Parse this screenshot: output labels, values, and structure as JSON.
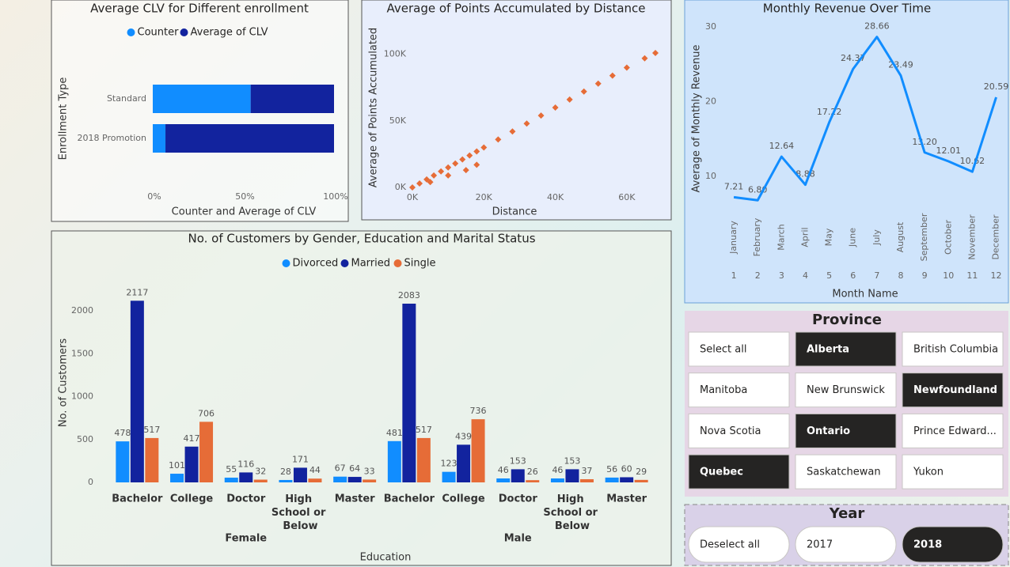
{
  "chart_data": [
    {
      "type": "bar",
      "orientation": "horizontal",
      "stacked": true,
      "title": "Average CLV for Different enrollment",
      "x_label": "Counter and Average of CLV",
      "y_label": "Enrollment Type",
      "categories": [
        "Standard",
        "2018 Promotion"
      ],
      "series": [
        {
          "name": "Counter",
          "color": "#118dff",
          "values": [
            54,
            7
          ]
        },
        {
          "name": "Average of CLV",
          "color": "#12239e",
          "values": [
            46,
            93
          ]
        }
      ],
      "xlim": [
        0,
        100
      ],
      "xticks": [
        {
          "value": 0,
          "label": "0%"
        },
        {
          "value": 50,
          "label": "50%"
        },
        {
          "value": 100,
          "label": "100%"
        }
      ]
    },
    {
      "type": "scatter",
      "title": "Average of Points Accumulated by Distance",
      "x_label": "Distance",
      "y_label": "Average of Points Accumulated",
      "color": "#e66c37",
      "x": [
        0,
        2000,
        4000,
        6000,
        8000,
        10000,
        12000,
        14000,
        16000,
        18000,
        20000,
        24000,
        28000,
        32000,
        36000,
        40000,
        44000,
        48000,
        52000,
        56000,
        60000,
        65000,
        68000,
        5000,
        10000,
        15000,
        18000
      ],
      "values": [
        0,
        3000,
        6000,
        9000,
        12000,
        15000,
        18000,
        21000,
        24000,
        27000,
        30000,
        36000,
        42000,
        48000,
        54000,
        60000,
        66000,
        72000,
        78000,
        84000,
        90000,
        97000,
        101000,
        4000,
        9000,
        13000,
        17000
      ],
      "xlim": [
        0,
        68000
      ],
      "xticks": [
        {
          "value": 0,
          "label": "0K"
        },
        {
          "value": 20000,
          "label": "20K"
        },
        {
          "value": 40000,
          "label": "40K"
        },
        {
          "value": 60000,
          "label": "60K"
        }
      ],
      "ylim": [
        0,
        120000
      ],
      "yticks": [
        {
          "value": 0,
          "label": "0K"
        },
        {
          "value": 50000,
          "label": "50K"
        },
        {
          "value": 100000,
          "label": "100K"
        }
      ]
    },
    {
      "type": "line",
      "title": "Monthly Revenue Over Time",
      "x_label": "Month Name",
      "y_label": "Average of Monthly Revenue",
      "color": "#118dff",
      "categories": [
        "January",
        "February",
        "March",
        "April",
        "May",
        "June",
        "July",
        "August",
        "September",
        "October",
        "November",
        "December"
      ],
      "month_numbers": [
        1,
        2,
        3,
        4,
        5,
        6,
        7,
        8,
        9,
        10,
        11,
        12
      ],
      "values": [
        7.21,
        6.8,
        12.64,
        8.88,
        17.22,
        24.37,
        28.66,
        23.49,
        13.2,
        12.01,
        10.62,
        20.59
      ],
      "value_labels": [
        "7.21",
        "6.80",
        "12.64",
        "8.88",
        "17.22",
        "24.37",
        "28.66",
        "23.49",
        "13.20",
        "12.01",
        "10.62",
        "20.59"
      ],
      "ylim": [
        5.8,
        30.5
      ],
      "yticks": [
        10,
        20,
        30
      ]
    },
    {
      "type": "grouped_bar",
      "title": "No. of Customers by Gender, Education and Marital Status",
      "x_label": "Education",
      "y_label": "No. of Customers",
      "categories": [
        "Bachelor",
        "College",
        "Doctor",
        "High School or Below",
        "Master",
        "Bachelor",
        "College",
        "Doctor",
        "High School or Below",
        "Master"
      ],
      "groups": [
        "Female",
        "Male"
      ],
      "series": [
        {
          "name": "Divorced",
          "color": "#118dff",
          "values": [
            478,
            101,
            55,
            28,
            67,
            481,
            123,
            46,
            46,
            56
          ]
        },
        {
          "name": "Married",
          "color": "#12239e",
          "values": [
            2117,
            417,
            116,
            171,
            64,
            2083,
            439,
            153,
            153,
            60
          ]
        },
        {
          "name": "Single",
          "color": "#e66c37",
          "values": [
            517,
            706,
            32,
            44,
            33,
            517,
            736,
            26,
            37,
            29
          ]
        }
      ],
      "ylim": [
        0,
        2400
      ],
      "yticks": [
        0,
        500,
        1000,
        1500,
        2000
      ]
    }
  ],
  "province_slicer": {
    "title": "Province",
    "items": [
      {
        "label": "Select all",
        "selected": false
      },
      {
        "label": "Alberta",
        "selected": true
      },
      {
        "label": "British Columbia",
        "selected": false
      },
      {
        "label": "Manitoba",
        "selected": false
      },
      {
        "label": "New Brunswick",
        "selected": false
      },
      {
        "label": "Newfoundland",
        "selected": true
      },
      {
        "label": "Nova Scotia",
        "selected": false
      },
      {
        "label": "Ontario",
        "selected": true
      },
      {
        "label": "Prince Edward...",
        "selected": false
      },
      {
        "label": "Quebec",
        "selected": true
      },
      {
        "label": "Saskatchewan",
        "selected": false
      },
      {
        "label": "Yukon",
        "selected": false
      }
    ]
  },
  "year_slicer": {
    "title": "Year",
    "items": [
      {
        "label": "Deselect all",
        "selected": false
      },
      {
        "label": "2017",
        "selected": false
      },
      {
        "label": "2018",
        "selected": true
      }
    ]
  }
}
